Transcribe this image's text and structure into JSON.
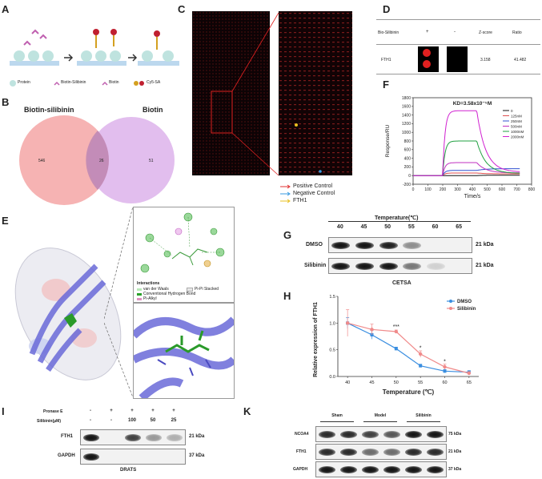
{
  "panels": {
    "A": "A",
    "B": "B",
    "C": "C",
    "D": "D",
    "E": "E",
    "F": "F",
    "G": "G",
    "H": "H",
    "I": "I",
    "K": "K"
  },
  "panelA": {
    "legend": [
      "Protein",
      "Biotin-Silibinin",
      "Biotin",
      "Cy5-SA"
    ]
  },
  "panelB": {
    "left_title": "Biotin-silibinin",
    "right_title": "Biotin",
    "left_count": "546",
    "overlap_count": "26",
    "right_count": "51"
  },
  "panelC": {
    "legend": [
      {
        "label": "Positive Control",
        "color": "#e03030"
      },
      {
        "label": "Negative Control",
        "color": "#3a9be0"
      },
      {
        "label": "FTH1",
        "color": "#e8c020"
      }
    ]
  },
  "panelD": {
    "col_headers": [
      "Bio-Silibinin",
      "+",
      "-",
      "Z-score",
      "Ratio"
    ],
    "row_label": "FTH1",
    "zscore": "3.158",
    "ratio": "41.482"
  },
  "panelF": {
    "chart_data": {
      "type": "line",
      "title": "KD=3.58x10⁻⁵M",
      "xlabel": "Time/s",
      "ylabel": "Response/RU",
      "xlim": [
        0,
        800
      ],
      "ylim": [
        -200,
        1800
      ],
      "xticks": [
        "0",
        "100",
        "200",
        "300",
        "400",
        "500",
        "600",
        "700",
        "800"
      ],
      "yticks": [
        "-200",
        "0",
        "200",
        "400",
        "600",
        "800",
        "1000",
        "1200",
        "1400",
        "1600",
        "1800"
      ],
      "legend_placement": "top-right",
      "series": [
        {
          "name": "0",
          "color": "#111111",
          "plateau": 0,
          "end": 10
        },
        {
          "name": "125nM",
          "color": "#e05050",
          "plateau": 60,
          "end": 40
        },
        {
          "name": "250nM",
          "color": "#3050d0",
          "plateau": 120,
          "end": 160
        },
        {
          "name": "500nM",
          "color": "#c030c0",
          "plateau": 300,
          "end": 60
        },
        {
          "name": "1000nM",
          "color": "#20a040",
          "plateau": 800,
          "end": 50
        },
        {
          "name": "2000nM",
          "color": "#d020d0",
          "plateau": 1500,
          "end": 80
        }
      ]
    }
  },
  "panelE": {
    "interactions_title": "Interactions",
    "legend": [
      "van der Waals",
      "Conventional Hydrogen Bond",
      "Pi-Alkyl",
      "Pi-Pi Stacked"
    ]
  },
  "panelG": {
    "title": "Temperature(℃)",
    "temps": [
      "40",
      "45",
      "50",
      "55",
      "60",
      "65"
    ],
    "rows": [
      {
        "label": "DMSO",
        "size": "21 kDa",
        "intensity": [
          1,
          1,
          0.95,
          0.45,
          0,
          0
        ]
      },
      {
        "label": "Silibinin",
        "size": "21 kDa",
        "intensity": [
          1,
          1,
          1,
          0.55,
          0.15,
          0
        ]
      }
    ],
    "caption": "CETSA"
  },
  "panelH": {
    "chart_data": {
      "type": "line",
      "xlabel": "Temperature (℃)",
      "ylabel": "Relative expression of FTH1",
      "xlim": [
        40,
        65
      ],
      "ylim": [
        0,
        1.5
      ],
      "x": [
        40,
        45,
        50,
        55,
        60,
        65
      ],
      "xticks": [
        "40",
        "45",
        "50",
        "55",
        "60",
        "65"
      ],
      "yticks": [
        "0.0",
        "0.5",
        "1.0",
        "1.5"
      ],
      "legend_placement": "top-right",
      "series": [
        {
          "name": "DMSO",
          "color": "#3a8ee0",
          "values": [
            1.0,
            0.78,
            0.52,
            0.2,
            0.1,
            0.08
          ],
          "err": [
            0.1,
            0.08,
            0.03,
            0.03,
            0.03,
            0.03
          ]
        },
        {
          "name": "Silibinin",
          "color": "#f08a8a",
          "values": [
            1.0,
            0.88,
            0.84,
            0.42,
            0.18,
            0.06
          ],
          "err": [
            0.25,
            0.1,
            0.03,
            0.06,
            0.05,
            0.03
          ]
        }
      ],
      "annotations": [
        {
          "x": 50,
          "y": 0.9,
          "text": "***"
        },
        {
          "x": 55,
          "y": 0.5,
          "text": "*"
        },
        {
          "x": 60,
          "y": 0.25,
          "text": "*"
        }
      ]
    }
  },
  "panelI": {
    "pronase_label": "Pronase E",
    "pronase_values": [
      "-",
      "+",
      "+",
      "+",
      "+"
    ],
    "silibinin_label": "Silibinin(μM)",
    "silibinin_values": [
      "-",
      "-",
      "100",
      "50",
      "25"
    ],
    "rows": [
      {
        "label": "FTH1",
        "size": "21 kDa",
        "intensity": [
          1,
          0,
          0.8,
          0.4,
          0.3
        ]
      },
      {
        "label": "GAPDH",
        "size": "37 kDa",
        "intensity": [
          1,
          0,
          0,
          0,
          0
        ]
      }
    ],
    "caption": "DRATS"
  },
  "panelK": {
    "groups": [
      "Sham",
      "Model",
      "Silibinin"
    ],
    "rows": [
      {
        "label": "NCOA4",
        "size": "75 kDa",
        "intensity": [
          0.9,
          0.9,
          0.8,
          0.7,
          1,
          1
        ]
      },
      {
        "label": "FTH1",
        "size": "21 kDa",
        "intensity": [
          0.9,
          0.9,
          0.6,
          0.6,
          0.9,
          0.9
        ]
      },
      {
        "label": "GAPDH",
        "size": "37 kDa",
        "intensity": [
          1,
          1,
          1,
          1,
          1,
          1
        ]
      }
    ]
  }
}
